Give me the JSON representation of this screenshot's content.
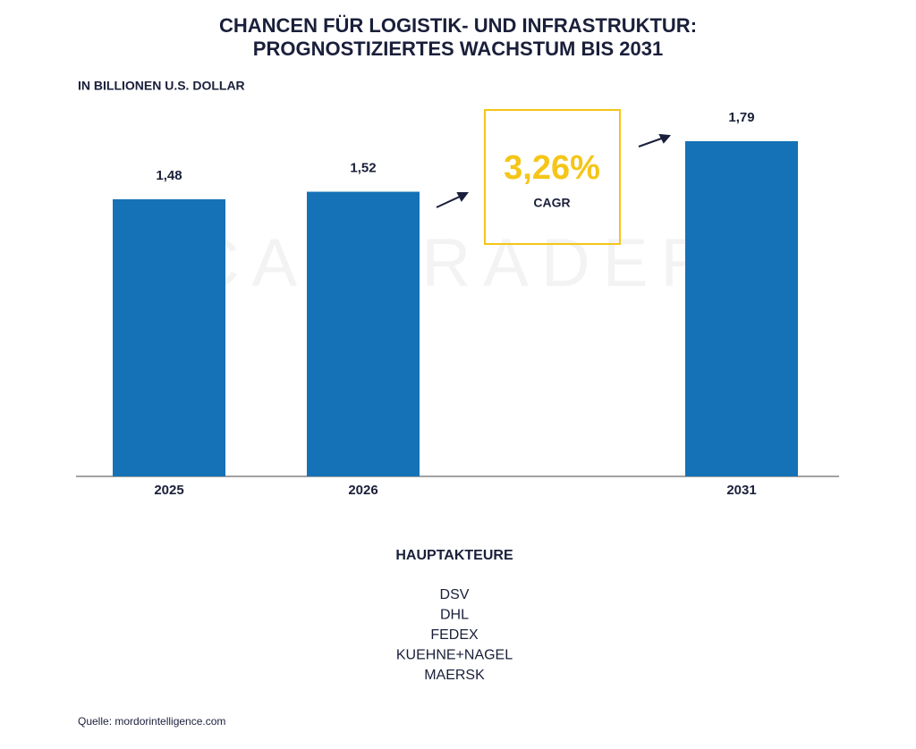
{
  "chart_data": {
    "type": "bar",
    "title": [
      "CHANCEN FÜR LOGISTIK- UND INFRASTRUKTUR:",
      "PROGNOSTIZIERTES WACHSTUM BIS 2031"
    ],
    "subtitle": "IN BILLIONEN U.S. DOLLAR",
    "watermark": "CAPTRADER",
    "categories": [
      "2025",
      "2026",
      "2031"
    ],
    "values": [
      1.48,
      1.52,
      1.79
    ],
    "value_labels": [
      "1,48",
      "1,52",
      "1,79"
    ],
    "color": "#1572b6",
    "ylim": [
      0,
      2.1
    ],
    "cagr": "3,26%",
    "cagr_label": "CAGR",
    "players_title": "HAUPTAKTEURE",
    "players": [
      "DSV",
      "DHL",
      "FEDEX",
      "KUEHNE+NAGEL",
      "MAERSK"
    ],
    "source": "Quelle: mordorintelligence.com"
  }
}
